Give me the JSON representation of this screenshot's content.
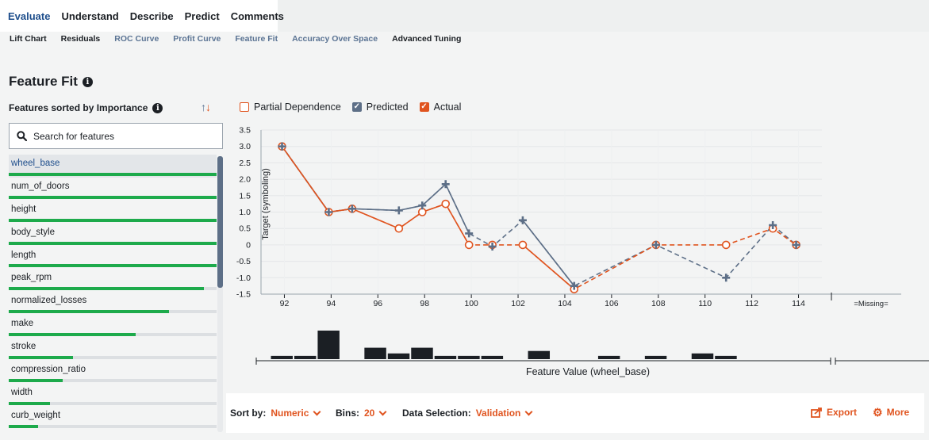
{
  "top_tabs": [
    {
      "label": "Evaluate",
      "active": true
    },
    {
      "label": "Understand",
      "active": false
    },
    {
      "label": "Describe",
      "active": false
    },
    {
      "label": "Predict",
      "active": false
    },
    {
      "label": "Comments",
      "active": false
    }
  ],
  "sub_tabs": [
    {
      "label": "Lift Chart",
      "muted": false
    },
    {
      "label": "Residuals",
      "muted": false
    },
    {
      "label": "ROC Curve",
      "muted": true
    },
    {
      "label": "Profit Curve",
      "muted": true
    },
    {
      "label": "Feature Fit",
      "muted": true
    },
    {
      "label": "Accuracy Over Space",
      "muted": true
    },
    {
      "label": "Advanced Tuning",
      "muted": false
    }
  ],
  "page": {
    "title": "Feature Fit",
    "info_icon": "info-icon"
  },
  "sidebar": {
    "heading": "Features sorted by Importance",
    "sort_up": "↑",
    "sort_down": "↓",
    "search_placeholder": "Search for features",
    "features": [
      {
        "name": "wheel_base",
        "importance": 1.0,
        "selected": true
      },
      {
        "name": "num_of_doors",
        "importance": 1.0,
        "selected": false
      },
      {
        "name": "height",
        "importance": 1.0,
        "selected": false
      },
      {
        "name": "body_style",
        "importance": 1.0,
        "selected": false
      },
      {
        "name": "length",
        "importance": 1.0,
        "selected": false
      },
      {
        "name": "peak_rpm",
        "importance": 0.94,
        "selected": false
      },
      {
        "name": "normalized_losses",
        "importance": 0.77,
        "selected": false
      },
      {
        "name": "make",
        "importance": 0.61,
        "selected": false
      },
      {
        "name": "stroke",
        "importance": 0.31,
        "selected": false
      },
      {
        "name": "compression_ratio",
        "importance": 0.26,
        "selected": false
      },
      {
        "name": "width",
        "importance": 0.2,
        "selected": false
      },
      {
        "name": "curb_weight",
        "importance": 0.14,
        "selected": false
      }
    ]
  },
  "legend": {
    "partial_dependence": "Partial Dependence",
    "predicted": "Predicted",
    "actual": "Actual",
    "partial_checked": false,
    "predicted_checked": true,
    "actual_checked": true
  },
  "colors": {
    "predicted": "#5d6f87",
    "actual": "#e0541f",
    "histogram": "#1b1f24",
    "importance": "#1daa4b"
  },
  "chart_data": {
    "type": "line",
    "ylabel": "Target (symboling)",
    "xlabel": "Feature Value (wheel_base)",
    "xlim": [
      91,
      115
    ],
    "ylim": [
      -1.5,
      3.5
    ],
    "yticks": [
      -1.5,
      -1.0,
      -0.5,
      0,
      0.5,
      1.0,
      1.5,
      2.0,
      2.5,
      3.0,
      3.5
    ],
    "xticks": [
      92,
      94,
      96,
      98,
      100,
      102,
      104,
      106,
      108,
      110,
      112,
      114
    ],
    "missing_label": "=Missing=",
    "grid": true,
    "series": [
      {
        "name": "Predicted",
        "x": [
          91.9,
          93.9,
          94.9,
          96.9,
          97.9,
          98.9,
          99.9,
          100.9,
          102.2,
          104.4,
          107.9,
          110.9,
          112.9,
          113.9
        ],
        "values": [
          3.0,
          1.0,
          1.1,
          1.05,
          1.2,
          1.85,
          0.35,
          -0.05,
          0.75,
          -1.25,
          0,
          -1.0,
          0.6,
          0
        ]
      },
      {
        "name": "Actual",
        "x": [
          91.9,
          93.9,
          94.9,
          96.9,
          97.9,
          98.9,
          99.9,
          100.9,
          102.2,
          104.4,
          107.9,
          110.9,
          112.9,
          113.9
        ],
        "values": [
          3.0,
          1.0,
          1.1,
          0.5,
          1.0,
          1.25,
          0,
          0,
          0,
          -1.35,
          0,
          0,
          0.5,
          0
        ]
      }
    ],
    "histogram": [
      {
        "x": 91.9,
        "count": 8
      },
      {
        "x": 92.9,
        "count": 8
      },
      {
        "x": 93.9,
        "count": 70
      },
      {
        "x": 95.9,
        "count": 28
      },
      {
        "x": 96.9,
        "count": 14
      },
      {
        "x": 97.9,
        "count": 28
      },
      {
        "x": 98.9,
        "count": 8
      },
      {
        "x": 99.9,
        "count": 8
      },
      {
        "x": 100.9,
        "count": 8
      },
      {
        "x": 102.9,
        "count": 20
      },
      {
        "x": 105.9,
        "count": 8
      },
      {
        "x": 107.9,
        "count": 8
      },
      {
        "x": 109.9,
        "count": 14
      },
      {
        "x": 110.9,
        "count": 8
      }
    ]
  },
  "bottom": {
    "sort_label": "Sort by:",
    "sort_value": "Numeric",
    "bins_label": "Bins:",
    "bins_value": "20",
    "data_label": "Data Selection:",
    "data_value": "Validation",
    "export_label": "Export",
    "more_label": "More"
  }
}
